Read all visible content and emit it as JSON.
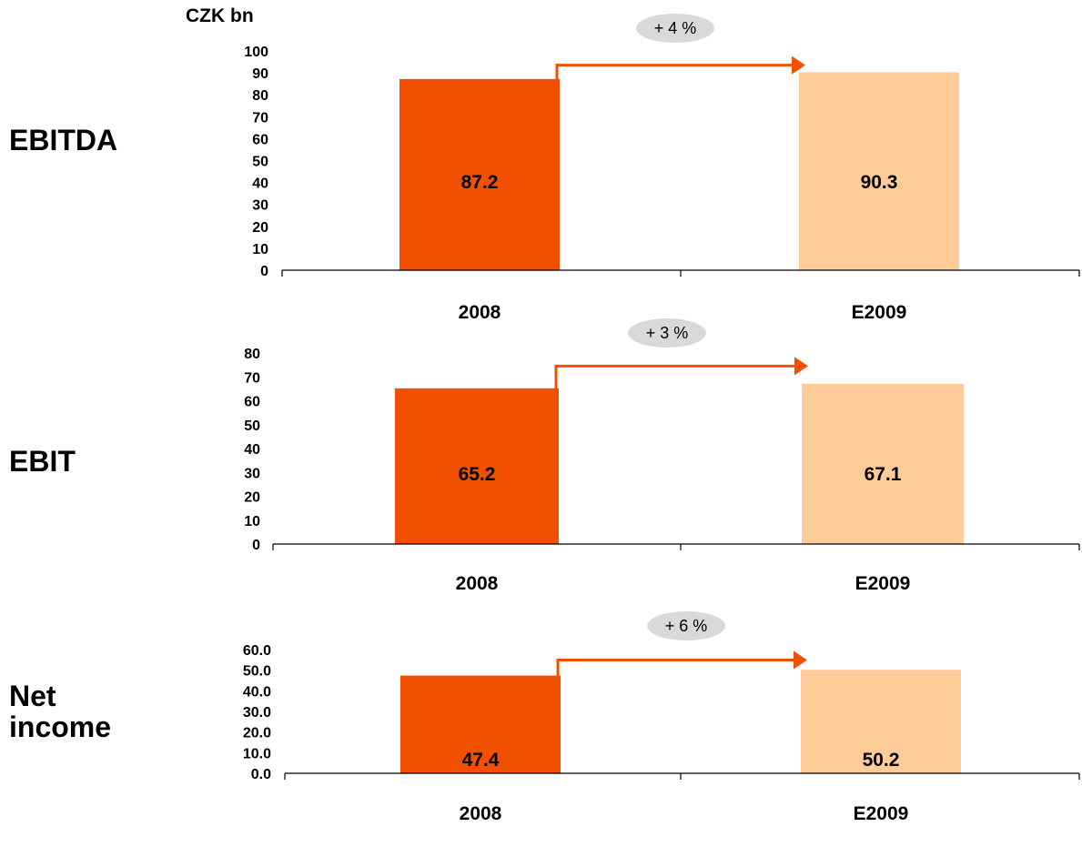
{
  "unit_label": "CZK bn",
  "colors": {
    "bar_2008": "#f05000",
    "bar_e2009": "#ffcc99",
    "arrow": "#f05000",
    "badge": "#d9d9d9",
    "axis": "#000000"
  },
  "chart_data": [
    {
      "type": "bar",
      "row_title": "EBITDA",
      "categories": [
        "2008",
        "E2009"
      ],
      "values": [
        87.2,
        90.3
      ],
      "value_labels": [
        "87.2",
        "90.3"
      ],
      "yticks": [
        "0",
        "10",
        "20",
        "30",
        "40",
        "50",
        "60",
        "70",
        "80",
        "90",
        "100"
      ],
      "ylim": [
        0,
        100
      ],
      "growth_label": "+ 4 %"
    },
    {
      "type": "bar",
      "row_title": "EBIT",
      "categories": [
        "2008",
        "E2009"
      ],
      "values": [
        65.2,
        67.1
      ],
      "value_labels": [
        "65.2",
        "67.1"
      ],
      "yticks": [
        "0",
        "10",
        "20",
        "30",
        "40",
        "50",
        "60",
        "70",
        "80"
      ],
      "ylim": [
        0,
        80
      ],
      "growth_label": "+ 3 %"
    },
    {
      "type": "bar",
      "row_title": "Net income",
      "categories": [
        "2008",
        "E2009"
      ],
      "values": [
        47.4,
        50.2
      ],
      "value_labels": [
        "47.4",
        "50.2"
      ],
      "yticks": [
        "0.0",
        "10.0",
        "20.0",
        "30.0",
        "40.0",
        "50.0",
        "60.0"
      ],
      "ylim": [
        0,
        60
      ],
      "growth_label": "+ 6 %"
    }
  ]
}
